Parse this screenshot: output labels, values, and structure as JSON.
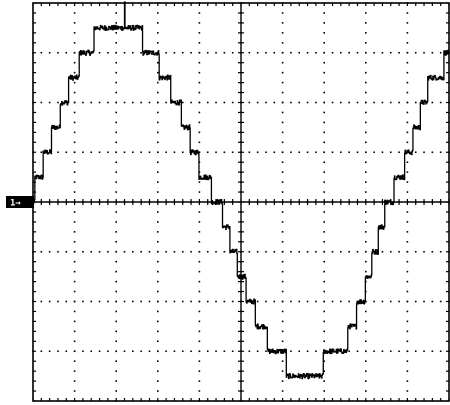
{
  "chart_data": {
    "type": "line",
    "title": "",
    "xlabel": "",
    "ylabel": "",
    "grid": true,
    "grid_divisions": {
      "x": 10,
      "y": 8
    },
    "xlim": [
      0,
      10
    ],
    "ylim": [
      -4,
      4
    ],
    "ground_marker_label": "1→",
    "series": [
      {
        "name": "",
        "color": "#000000",
        "step_levels": 8,
        "step_noise": 0.05,
        "x": [
          0,
          0.5,
          1.0,
          1.5,
          2.0,
          2.2,
          2.5,
          3.0,
          3.5,
          4.0,
          4.5,
          5.0,
          5.5,
          6.0,
          6.5,
          6.8,
          7.0,
          7.5,
          8.0,
          8.5,
          9.0,
          9.5,
          10.0
        ],
        "y": [
          0.15,
          1.4,
          2.6,
          3.3,
          3.5,
          3.75,
          3.4,
          2.8,
          1.9,
          0.7,
          -0.1,
          -1.5,
          -2.6,
          -3.2,
          -3.5,
          -3.55,
          -3.2,
          -2.9,
          -1.7,
          -0.1,
          0.9,
          2.3,
          2.9
        ]
      }
    ]
  }
}
